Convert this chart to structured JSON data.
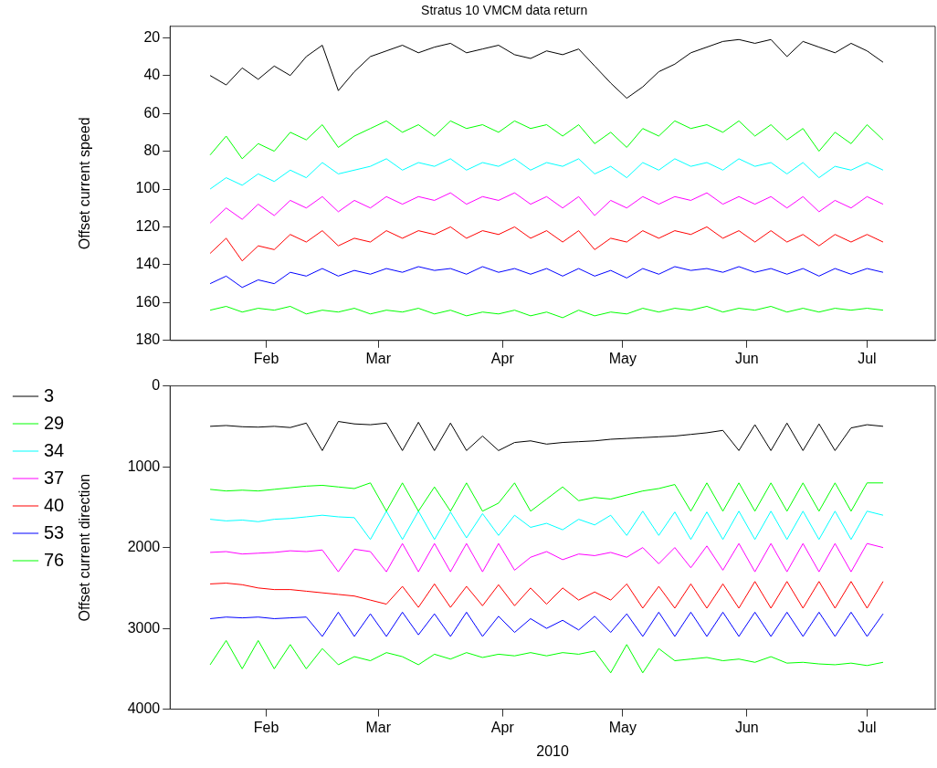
{
  "chart_data": [
    {
      "type": "line",
      "title": "Stratus 10 VMCM data return",
      "ylabel": "Offset current speed",
      "x": [
        "2010-01-18",
        "2010-01-22",
        "2010-01-26",
        "2010-01-30",
        "2010-02-03",
        "2010-02-07",
        "2010-02-11",
        "2010-02-15",
        "2010-02-19",
        "2010-02-23",
        "2010-02-27",
        "2010-03-03",
        "2010-03-07",
        "2010-03-11",
        "2010-03-15",
        "2010-03-19",
        "2010-03-23",
        "2010-03-27",
        "2010-03-31",
        "2010-04-04",
        "2010-04-08",
        "2010-04-12",
        "2010-04-16",
        "2010-04-20",
        "2010-04-24",
        "2010-04-28",
        "2010-05-02",
        "2010-05-06",
        "2010-05-10",
        "2010-05-14",
        "2010-05-18",
        "2010-05-22",
        "2010-05-26",
        "2010-05-30",
        "2010-06-03",
        "2010-06-07",
        "2010-06-11",
        "2010-06-15",
        "2010-06-19",
        "2010-06-23",
        "2010-06-27",
        "2010-07-01",
        "2010-07-05"
      ],
      "series": [
        {
          "color": "#000000",
          "values": [
            40,
            45,
            36,
            42,
            35,
            40,
            30,
            24,
            48,
            38,
            30,
            27,
            24,
            28,
            25,
            23,
            28,
            26,
            24,
            29,
            31,
            27,
            29,
            26,
            35,
            44,
            52,
            46,
            38,
            34,
            28,
            25,
            22,
            21,
            23,
            21,
            30,
            22,
            25,
            28,
            23,
            27,
            33
          ]
        },
        {
          "color": "#00ff00",
          "values": [
            82,
            72,
            84,
            76,
            80,
            70,
            74,
            66,
            78,
            72,
            68,
            64,
            70,
            66,
            72,
            64,
            68,
            66,
            70,
            64,
            68,
            66,
            72,
            66,
            76,
            70,
            78,
            68,
            72,
            64,
            68,
            66,
            70,
            64,
            72,
            66,
            74,
            68,
            80,
            70,
            76,
            66,
            74
          ]
        },
        {
          "color": "#00ffff",
          "values": [
            100,
            94,
            98,
            92,
            96,
            90,
            94,
            86,
            92,
            90,
            88,
            84,
            90,
            86,
            88,
            84,
            90,
            86,
            88,
            84,
            90,
            86,
            88,
            84,
            92,
            88,
            94,
            86,
            90,
            84,
            88,
            86,
            90,
            84,
            88,
            86,
            92,
            86,
            94,
            88,
            90,
            86,
            90
          ]
        },
        {
          "color": "#ff00ff",
          "values": [
            118,
            110,
            116,
            108,
            114,
            106,
            110,
            104,
            112,
            106,
            110,
            104,
            108,
            104,
            106,
            102,
            108,
            104,
            106,
            102,
            108,
            104,
            110,
            104,
            114,
            106,
            110,
            104,
            108,
            104,
            106,
            102,
            108,
            104,
            108,
            104,
            110,
            104,
            112,
            106,
            110,
            104,
            108
          ]
        },
        {
          "color": "#ff0000",
          "values": [
            134,
            126,
            138,
            130,
            132,
            124,
            128,
            122,
            130,
            126,
            128,
            122,
            126,
            122,
            124,
            120,
            126,
            122,
            124,
            120,
            126,
            122,
            128,
            122,
            132,
            126,
            128,
            122,
            126,
            122,
            124,
            120,
            126,
            122,
            128,
            122,
            128,
            124,
            130,
            124,
            128,
            124,
            128
          ]
        },
        {
          "color": "#0000ff",
          "values": [
            150,
            146,
            152,
            148,
            150,
            144,
            146,
            142,
            146,
            143,
            145,
            142,
            144,
            141,
            143,
            142,
            145,
            141,
            144,
            142,
            145,
            142,
            146,
            142,
            146,
            143,
            147,
            142,
            145,
            141,
            143,
            142,
            144,
            141,
            144,
            142,
            145,
            142,
            146,
            142,
            145,
            142,
            144
          ]
        },
        {
          "color": "#00ff00",
          "values": [
            164,
            162,
            165,
            163,
            164,
            162,
            166,
            164,
            165,
            163,
            166,
            164,
            165,
            163,
            166,
            164,
            167,
            165,
            166,
            164,
            167,
            165,
            168,
            164,
            167,
            165,
            166,
            163,
            165,
            163,
            164,
            162,
            165,
            163,
            164,
            162,
            165,
            163,
            165,
            163,
            164,
            163,
            164
          ]
        }
      ],
      "xlim": [
        "2010-01-08",
        "2010-07-18"
      ],
      "xticks": [
        {
          "value": "2010-02-01",
          "label": "Feb"
        },
        {
          "value": "2010-03-01",
          "label": "Mar"
        },
        {
          "value": "2010-04-01",
          "label": "Apr"
        },
        {
          "value": "2010-05-01",
          "label": "May"
        },
        {
          "value": "2010-06-01",
          "label": "Jun"
        },
        {
          "value": "2010-07-01",
          "label": "Jul"
        }
      ],
      "ylim": [
        180,
        14
      ],
      "yticks": [
        20,
        40,
        60,
        80,
        100,
        120,
        140,
        160,
        180
      ],
      "grid": false
    },
    {
      "type": "line",
      "ylabel": "Offset current direction",
      "xlabel": "2010",
      "x": [
        "2010-01-18",
        "2010-01-22",
        "2010-01-26",
        "2010-01-30",
        "2010-02-03",
        "2010-02-07",
        "2010-02-11",
        "2010-02-15",
        "2010-02-19",
        "2010-02-23",
        "2010-02-27",
        "2010-03-03",
        "2010-03-07",
        "2010-03-11",
        "2010-03-15",
        "2010-03-19",
        "2010-03-23",
        "2010-03-27",
        "2010-03-31",
        "2010-04-04",
        "2010-04-08",
        "2010-04-12",
        "2010-04-16",
        "2010-04-20",
        "2010-04-24",
        "2010-04-28",
        "2010-05-02",
        "2010-05-06",
        "2010-05-10",
        "2010-05-14",
        "2010-05-18",
        "2010-05-22",
        "2010-05-26",
        "2010-05-30",
        "2010-06-03",
        "2010-06-07",
        "2010-06-11",
        "2010-06-15",
        "2010-06-19",
        "2010-06-23",
        "2010-06-27",
        "2010-07-01",
        "2010-07-05"
      ],
      "series": [
        {
          "name": "3",
          "color": "#000000",
          "values": [
            500,
            490,
            505,
            510,
            500,
            515,
            460,
            800,
            440,
            470,
            480,
            460,
            800,
            450,
            800,
            460,
            800,
            620,
            800,
            700,
            680,
            720,
            700,
            690,
            680,
            660,
            650,
            640,
            630,
            620,
            600,
            580,
            550,
            800,
            480,
            800,
            460,
            800,
            470,
            800,
            520,
            480,
            500
          ]
        },
        {
          "name": "29",
          "color": "#00ff00",
          "values": [
            1280,
            1300,
            1290,
            1300,
            1280,
            1260,
            1240,
            1230,
            1250,
            1270,
            1200,
            1550,
            1200,
            1550,
            1250,
            1550,
            1200,
            1550,
            1450,
            1200,
            1550,
            1400,
            1250,
            1420,
            1380,
            1400,
            1350,
            1300,
            1270,
            1220,
            1550,
            1200,
            1550,
            1200,
            1550,
            1200,
            1550,
            1200,
            1550,
            1200,
            1550,
            1200,
            1200
          ]
        },
        {
          "name": "34",
          "color": "#00ffff",
          "values": [
            1650,
            1670,
            1660,
            1680,
            1650,
            1640,
            1620,
            1600,
            1620,
            1630,
            1900,
            1550,
            1900,
            1550,
            1900,
            1560,
            1880,
            1580,
            1850,
            1600,
            1750,
            1700,
            1780,
            1650,
            1720,
            1600,
            1850,
            1550,
            1850,
            1560,
            1900,
            1560,
            1900,
            1550,
            1900,
            1550,
            1900,
            1550,
            1900,
            1550,
            1900,
            1550,
            1600
          ]
        },
        {
          "name": "37",
          "color": "#ff00ff",
          "values": [
            2060,
            2050,
            2080,
            2070,
            2060,
            2040,
            2050,
            2030,
            2300,
            2020,
            2050,
            2300,
            1950,
            2300,
            1950,
            2300,
            1950,
            2300,
            1950,
            2280,
            2120,
            2050,
            2150,
            2080,
            2100,
            2060,
            2120,
            2000,
            2200,
            2000,
            2250,
            1980,
            2280,
            1950,
            2300,
            1950,
            2300,
            1950,
            2300,
            1950,
            2300,
            1950,
            2000
          ]
        },
        {
          "name": "40",
          "color": "#ff0000",
          "values": [
            2450,
            2440,
            2460,
            2500,
            2520,
            2520,
            2540,
            2560,
            2580,
            2600,
            2650,
            2700,
            2480,
            2740,
            2450,
            2740,
            2480,
            2720,
            2460,
            2720,
            2500,
            2700,
            2500,
            2650,
            2550,
            2650,
            2450,
            2750,
            2480,
            2750,
            2450,
            2750,
            2450,
            2750,
            2420,
            2750,
            2420,
            2750,
            2420,
            2750,
            2420,
            2750,
            2420
          ]
        },
        {
          "name": "53",
          "color": "#0000ff",
          "values": [
            2880,
            2860,
            2870,
            2860,
            2880,
            2870,
            2860,
            3100,
            2800,
            3100,
            2820,
            3100,
            2800,
            3080,
            2820,
            3100,
            2800,
            3100,
            2850,
            3050,
            2880,
            3000,
            2900,
            3020,
            2850,
            3050,
            2820,
            3100,
            2800,
            3100,
            2800,
            3100,
            2800,
            3100,
            2800,
            3100,
            2800,
            3100,
            2800,
            3100,
            2800,
            3100,
            2820
          ]
        },
        {
          "name": "76",
          "color": "#00ff00",
          "values": [
            3450,
            3150,
            3500,
            3150,
            3500,
            3200,
            3500,
            3250,
            3450,
            3350,
            3400,
            3300,
            3350,
            3450,
            3320,
            3380,
            3300,
            3360,
            3320,
            3340,
            3300,
            3340,
            3300,
            3320,
            3280,
            3550,
            3200,
            3550,
            3250,
            3400,
            3380,
            3360,
            3400,
            3380,
            3420,
            3350,
            3430,
            3420,
            3440,
            3450,
            3430,
            3460,
            3420
          ]
        }
      ],
      "xlim": [
        "2010-01-08",
        "2010-07-18"
      ],
      "xticks": [
        {
          "value": "2010-02-01",
          "label": "Feb"
        },
        {
          "value": "2010-03-01",
          "label": "Mar"
        },
        {
          "value": "2010-04-01",
          "label": "Apr"
        },
        {
          "value": "2010-05-01",
          "label": "May"
        },
        {
          "value": "2010-06-01",
          "label": "Jun"
        },
        {
          "value": "2010-07-01",
          "label": "Jul"
        }
      ],
      "ylim": [
        4000,
        0
      ],
      "yticks": [
        0,
        1000,
        2000,
        3000,
        4000
      ],
      "grid": false,
      "legend": "top left"
    }
  ]
}
